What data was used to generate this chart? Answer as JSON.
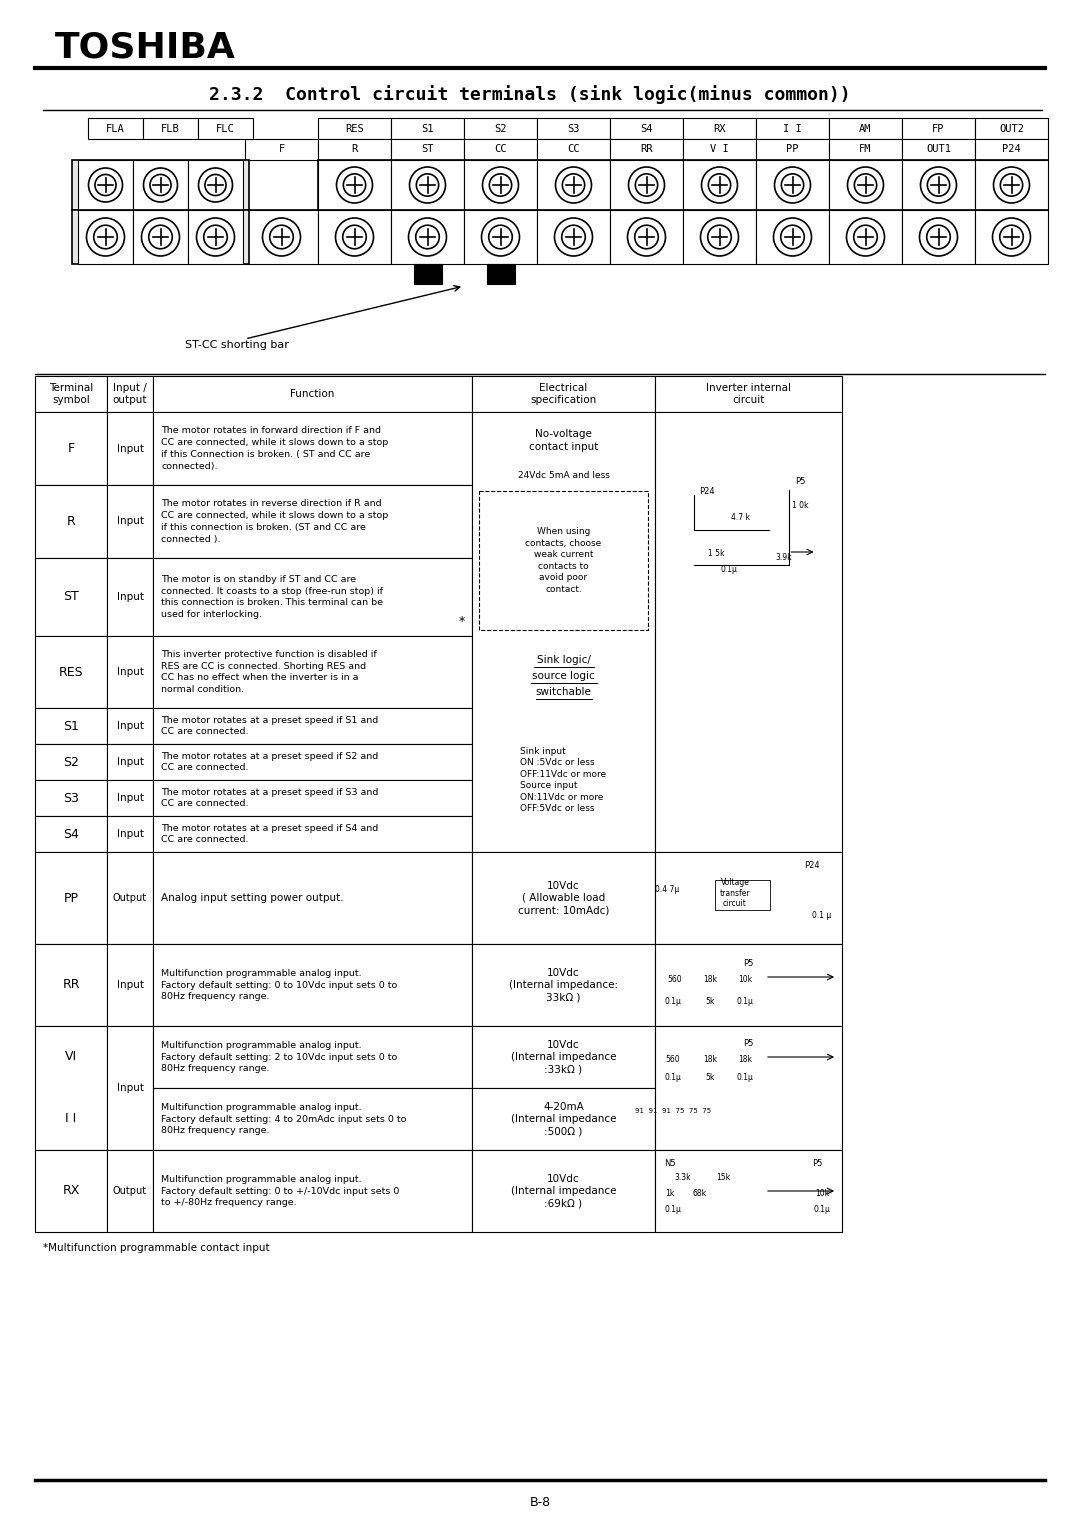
{
  "bg_color": "#ffffff",
  "title_company": "TOSHIBA",
  "section_title": "2.3.2  Control circuit terminals (sink logic(minus common))",
  "top_row_labels": [
    "RES",
    "S1",
    "S2",
    "S3",
    "S4",
    "RX",
    "I I",
    "AM",
    "FP",
    "OUT2"
  ],
  "bottom_row_labels": [
    "F",
    "R",
    "ST",
    "CC",
    "CC",
    "RR",
    "V I",
    "PP",
    "FM",
    "OUT1",
    "P24"
  ],
  "fla_flb_flc": [
    "FLA",
    "FLB",
    "FLC"
  ],
  "shorting_bar_label": "ST-CC shorting bar",
  "table_rows": [
    {
      "symbol": "F",
      "io": "Input",
      "function": "The motor rotates in forward direction if F and\nCC are connected, while it slows down to a stop\nif this Connection is broken. ( ST and CC are\nconnected).",
      "spec": "No-voltage\ncontact input\n24Vdc 5mA and less"
    },
    {
      "symbol": "R",
      "io": "Input",
      "function": "The motor rotates in reverse direction if R and\nCC are connected, while it slows down to a stop\nif this connection is broken. (ST and CC are\nconnected ).",
      "spec": ""
    },
    {
      "symbol": "ST",
      "io": "Input",
      "function": "The motor is on standby if ST and CC are\nconnected. It coasts to a stop (free-run stop) if\nthis connection is broken. This terminal can be\nused for interlocking.",
      "spec": ""
    },
    {
      "symbol": "RES",
      "io": "Input",
      "function": "This inverter protective function is disabled if\nRES are CC is connected. Shorting RES and\nCC has no effect when the inverter is in a\nnormal condition.",
      "spec": "Sink logic/\nsource logic\nswitchable"
    },
    {
      "symbol": "S1",
      "io": "Input",
      "function": "The motor rotates at a preset speed if S1 and\nCC are connected.",
      "spec": ""
    },
    {
      "symbol": "S2",
      "io": "Input",
      "function": "The motor rotates at a preset speed if S2 and\nCC are connected.",
      "spec": ""
    },
    {
      "symbol": "S3",
      "io": "Input",
      "function": "The motor rotates at a preset speed if S3 and\nCC are connected.",
      "spec": ""
    },
    {
      "symbol": "S4",
      "io": "Input",
      "function": "The motor rotates at a preset speed if S4 and\nCC are connected.",
      "spec": ""
    },
    {
      "symbol": "PP",
      "io": "Output",
      "function": "Analog input setting power output.",
      "spec": "10Vdc\n( Allowable load\ncurrent: 10mAdc)"
    },
    {
      "symbol": "RR",
      "io": "Input",
      "function": "Multifunction programmable analog input.\nFactory default setting: 0 to 10Vdc input sets 0 to\n80Hz frequency range.",
      "spec": "10Vdc\n(Internal impedance:\n33kΩ )"
    },
    {
      "symbol": "VI",
      "io": "Input",
      "function": "Multifunction programmable analog input.\nFactory default setting: 2 to 10Vdc input sets 0 to\n80Hz frequency range.",
      "spec": "10Vdc\n(Internal impedance\n:33kΩ )"
    },
    {
      "symbol": "I I",
      "io": "Input",
      "function": "Multifunction programmable analog input.\nFactory default setting: 4 to 20mAdc input sets 0 to\n80Hz frequency range.",
      "spec": "4-20mA\n(Internal impedance\n:500Ω )"
    },
    {
      "symbol": "RX",
      "io": "Output",
      "function": "Multifunction programmable analog input.\nFactory default setting: 0 to +/-10Vdc input sets 0\nto +/-80Hz frequency range.",
      "spec": "10Vdc\n(Internal impedance\n:69kΩ )"
    }
  ],
  "footnote": "*Multifunction programmable contact input",
  "page_number": "B-8"
}
